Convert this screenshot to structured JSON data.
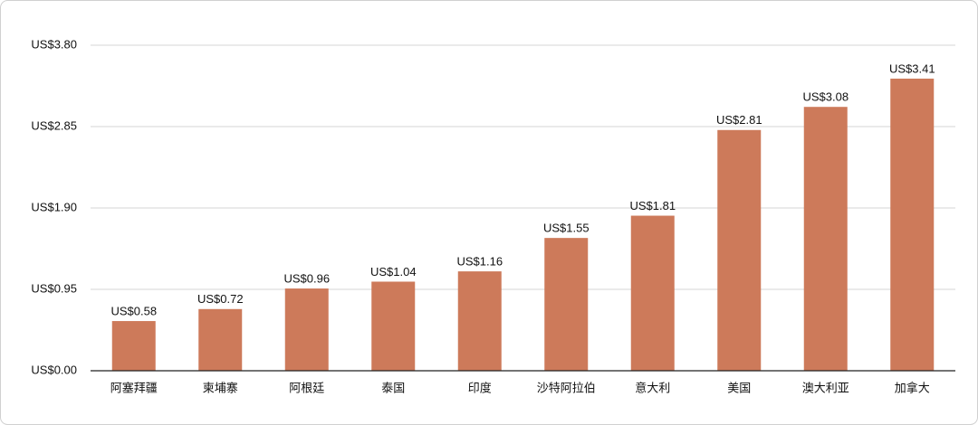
{
  "chart_data": {
    "type": "bar",
    "categories": [
      "阿塞拜疆",
      "柬埔寨",
      "阿根廷",
      "泰国",
      "印度",
      "沙特阿拉伯",
      "意大利",
      "美国",
      "澳大利亚",
      "加拿大"
    ],
    "values": [
      0.58,
      0.72,
      0.96,
      1.04,
      1.16,
      1.55,
      1.81,
      2.81,
      3.08,
      3.41
    ],
    "value_labels": [
      "US$0.58",
      "US$0.72",
      "US$0.96",
      "US$1.04",
      "US$1.16",
      "US$1.55",
      "US$1.81",
      "US$2.81",
      "US$3.08",
      "US$3.41"
    ],
    "color": "#cd7a5a",
    "ylim": [
      0,
      3.8
    ],
    "yticks": [
      {
        "value": 0,
        "label": "US$0.00"
      },
      {
        "value": 0.95,
        "label": "US$0.95"
      },
      {
        "value": 1.9,
        "label": "US$1.90"
      },
      {
        "value": 2.85,
        "label": "US$2.85"
      },
      {
        "value": 3.8,
        "label": "US$3.80"
      }
    ],
    "grid": true
  }
}
